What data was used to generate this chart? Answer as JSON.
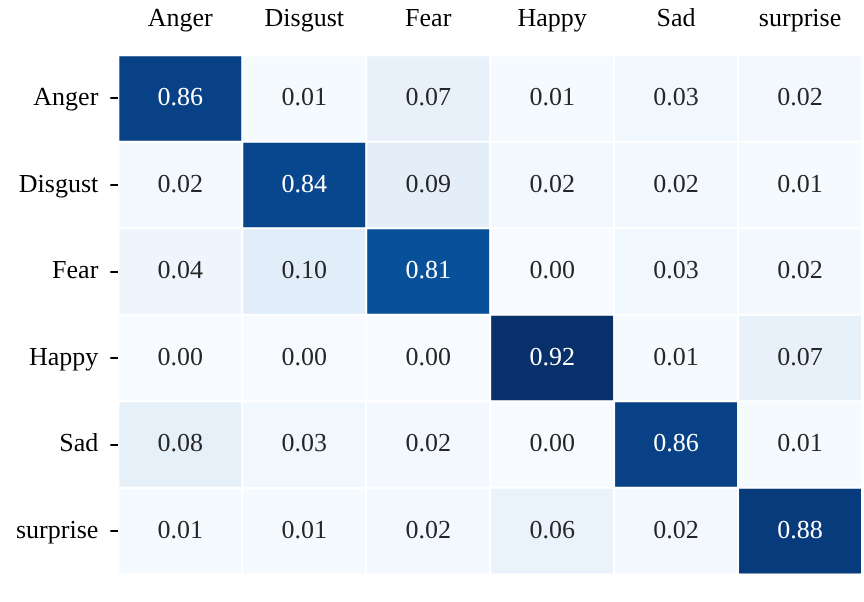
{
  "chart_data": {
    "type": "heatmap",
    "categories": [
      "Anger",
      "Disgust",
      "Fear",
      "Happy",
      "Sad",
      "surprise"
    ],
    "y_categories": [
      "Anger",
      "Disgust",
      "Fear",
      "Happy",
      "Sad",
      "surprise"
    ],
    "cells": [
      [
        0.86,
        0.01,
        0.07,
        0.01,
        0.03,
        0.02
      ],
      [
        0.02,
        0.84,
        0.09,
        0.02,
        0.02,
        0.01
      ],
      [
        0.04,
        0.1,
        0.81,
        0.0,
        0.03,
        0.02
      ],
      [
        0.0,
        0.0,
        0.0,
        0.92,
        0.01,
        0.07
      ],
      [
        0.08,
        0.03,
        0.02,
        0.0,
        0.86,
        0.01
      ],
      [
        0.01,
        0.01,
        0.02,
        0.06,
        0.02,
        0.88
      ]
    ],
    "cell_labels": [
      [
        "0.86",
        "0.01",
        "0.07",
        "0.01",
        "0.03",
        "0.02"
      ],
      [
        "0.02",
        "0.84",
        "0.09",
        "0.02",
        "0.02",
        "0.01"
      ],
      [
        "0.04",
        "0.10",
        "0.81",
        "0.00",
        "0.03",
        "0.02"
      ],
      [
        "0.00",
        "0.00",
        "0.00",
        "0.92",
        "0.01",
        "0.07"
      ],
      [
        "0.08",
        "0.03",
        "0.02",
        "0.00",
        "0.86",
        "0.01"
      ],
      [
        "0.01",
        "0.01",
        "0.02",
        "0.06",
        "0.02",
        "0.88"
      ]
    ]
  }
}
